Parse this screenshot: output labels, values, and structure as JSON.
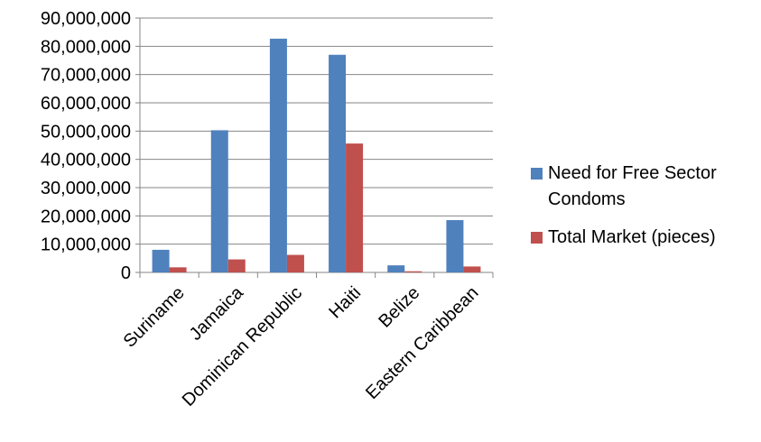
{
  "chart_data": {
    "type": "bar",
    "title": "",
    "xlabel": "",
    "ylabel": "",
    "categories": [
      "Suriname",
      "Jamaica",
      "Dominican Republic",
      "Haiti",
      "Belize",
      "Eastern Caribbean"
    ],
    "series": [
      {
        "name": "Need for Free Sector Condoms",
        "color": "#4F81BD",
        "values": [
          8000000,
          50300000,
          82700000,
          77000000,
          2500000,
          18500000
        ]
      },
      {
        "name": "Total Market (pieces)",
        "color": "#C0504D",
        "values": [
          1800000,
          4600000,
          6200000,
          45600000,
          400000,
          2100000
        ]
      }
    ],
    "ylim": [
      0,
      90000000
    ],
    "yticks": [
      "0",
      "10,000,000",
      "20,000,000",
      "30,000,000",
      "40,000,000",
      "50,000,000",
      "60,000,000",
      "70,000,000",
      "80,000,000",
      "90,000,000"
    ],
    "grid": true,
    "legend": "right"
  }
}
